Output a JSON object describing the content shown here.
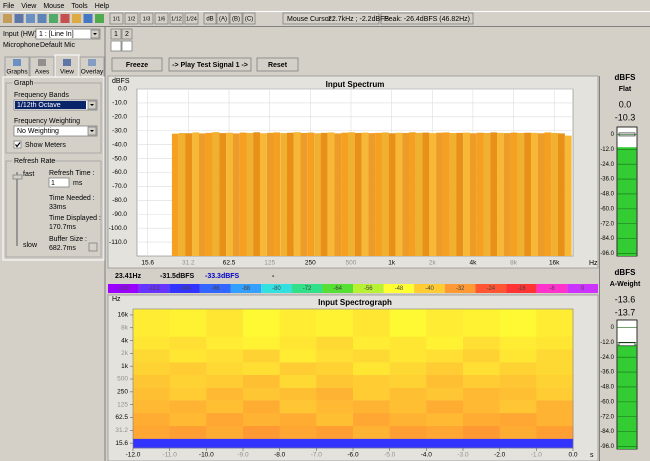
{
  "menu": [
    "File",
    "View",
    "Mouse",
    "Tools",
    "Help"
  ],
  "toolbar": {
    "bands": [
      "1/1",
      "1/2",
      "1/3",
      "1/6",
      "1/12",
      "1/24"
    ],
    "weightings": [
      "dB",
      "(A)",
      "(B)",
      "(C)"
    ],
    "cursor_label": "Mouse Cursor :",
    "cursor_value": "22.7kHz ; -2.2dBFS",
    "peak": "Peak: -26.4dBFS (46.82Hz)"
  },
  "input": {
    "label": "Input (HW)",
    "device": "1 : [Line In]",
    "source_label": "Microphone",
    "source": "Default Mic",
    "channels": [
      "1",
      "2"
    ]
  },
  "tabs": [
    "Graphs",
    "Axes",
    "View",
    "Overlay"
  ],
  "graph_group": {
    "title": "Graph",
    "bands_label": "Frequency Bands",
    "bands": "1/12th Octave",
    "weighting_label": "Frequency Weighting",
    "weighting": "No Weighting",
    "show_meters": "Show Meters"
  },
  "refresh_group": {
    "title": "Refresh Rate",
    "fast": "fast",
    "slow": "slow",
    "refresh_label": "Refresh Time :",
    "refresh_value": "1",
    "refresh_unit": "ms",
    "needed_label": "Time Needed :",
    "needed": "33ms",
    "displayed_label": "Time Displayed :",
    "displayed": "170.7ms",
    "buffer_label": "Buffer Size :",
    "buffer": "682.7ms"
  },
  "buttons": [
    "Freeze",
    "-> Play Test Signal 1 ->",
    "Reset"
  ],
  "readout": [
    "23.41Hz",
    "-31.5dBFS",
    "-33.3dBFS",
    "-"
  ],
  "chart_data": [
    {
      "type": "bar",
      "title": "Input Spectrum",
      "y_label": "dBFS",
      "x_label": "Hz",
      "x_scale": "log",
      "grid": true,
      "x": [
        25,
        28.1,
        31.5,
        35.4,
        39.7,
        44.5,
        50,
        56.1,
        63,
        70.7,
        79.4,
        89.1,
        100,
        112,
        126,
        141,
        159,
        178,
        200,
        224,
        252,
        283,
        317,
        356,
        400,
        449,
        504,
        566,
        635,
        713,
        800,
        898,
        1008,
        1131,
        1270,
        1425,
        1600,
        1796,
        2016,
        2263,
        2540,
        2851,
        3200,
        3592,
        4032,
        4525,
        5080,
        5702,
        6400,
        7184,
        8063,
        9051,
        10159,
        11404,
        12800,
        14368,
        16127,
        18102,
        20319
      ],
      "values": [
        -32.1,
        -31.6,
        -31.8,
        -31.2,
        -31.9,
        -31.5,
        -31.0,
        -31.7,
        -31.4,
        -31.9,
        -31.3,
        -31.6,
        -31.1,
        -31.8,
        -31.5,
        -31.2,
        -31.7,
        -31.4,
        -31.0,
        -31.6,
        -31.3,
        -31.8,
        -31.5,
        -31.2,
        -31.9,
        -31.4,
        -31.1,
        -31.6,
        -31.3,
        -31.7,
        -31.5,
        -31.2,
        -31.8,
        -31.4,
        -31.6,
        -31.1,
        -31.5,
        -31.3,
        -31.7,
        -31.4,
        -31.2,
        -31.6,
        -31.5,
        -31.3,
        -31.8,
        -31.4,
        -31.6,
        -31.2,
        -31.5,
        -31.7,
        -31.3,
        -31.6,
        -31.4,
        -31.5,
        -31.8,
        -31.2,
        -31.6,
        -31.9,
        -33.5
      ],
      "colors": [
        "#f5a020",
        "#f0b030",
        "#e89018",
        "#f7b838",
        "#ee9c28"
      ],
      "peak": {
        "color": "#000000",
        "values": [
          -30.4,
          -30.1,
          -30.3,
          -29.9,
          -30.2,
          -29.8,
          -30.0,
          -29.7,
          -29.9,
          -29.6,
          -29.8,
          -29.5,
          -29.7,
          -29.3,
          -29.6,
          -29.2,
          -29.0,
          -29.4,
          -28.6,
          -28.9,
          -27.9,
          -28.5,
          -29.1,
          -28.2,
          -28.8,
          -29.3,
          -28.7,
          -29.0,
          -28.4,
          -29.2,
          -28.9,
          -29.4,
          -29.1,
          -29.6,
          -29.3,
          -29.5,
          -29.2,
          -29.7,
          -29.4,
          -29.8,
          -29.5,
          -29.7,
          -29.4,
          -29.8,
          -29.6,
          -29.9,
          -29.5,
          -29.7,
          -29.8,
          -30.0,
          -29.7,
          -29.9,
          -30.1,
          -29.8,
          -30.0,
          -30.2,
          -30.1,
          -30.3,
          -32.0
        ]
      },
      "ylim": [
        -120,
        0
      ],
      "yticks": [
        {
          "value": 0,
          "label": "0.0"
        },
        {
          "value": -10,
          "label": "-10.0"
        },
        {
          "value": -20,
          "label": "-20.0"
        },
        {
          "value": -30,
          "label": "-30.0"
        },
        {
          "value": -40,
          "label": "-40.0"
        },
        {
          "value": -50,
          "label": "-50.0"
        },
        {
          "value": -60,
          "label": "-60.0"
        },
        {
          "value": -70,
          "label": "-70.0"
        },
        {
          "value": -80,
          "label": "-80.0"
        },
        {
          "value": -90,
          "label": "-90.0"
        },
        {
          "value": -100,
          "label": "-100.0"
        },
        {
          "value": -110,
          "label": "-110.0"
        }
      ],
      "xlim": [
        13,
        22050
      ],
      "xticks": [
        15.6,
        31.2,
        62.5,
        125,
        250,
        500,
        {
          "value": 1000,
          "label": "1k"
        },
        {
          "value": 2000,
          "label": "2k"
        },
        {
          "value": 4000,
          "label": "4k"
        },
        {
          "value": 8000,
          "label": "8k"
        },
        {
          "value": 16000,
          "label": "16k"
        }
      ]
    },
    {
      "type": "heatmap",
      "title": "Input Spectrograph",
      "y_label": "Hz",
      "x_label": "s",
      "y_scale": "log",
      "x_bins": [
        -12,
        -11,
        -10,
        -9,
        -8,
        -7,
        -6,
        -5,
        -4,
        -3,
        -2,
        -1,
        0
      ],
      "y_bins": [
        12,
        20,
        40,
        80,
        160,
        315,
        630,
        1250,
        2500,
        5000,
        22050
      ],
      "z": [
        [
          -104,
          -104,
          -104,
          -104,
          -104,
          -104,
          -104,
          -104,
          -104,
          -104,
          -104,
          -104
        ],
        [
          -34,
          -33,
          -35,
          -32,
          -34,
          -33,
          -36,
          -33,
          -34,
          -32,
          -35,
          -33
        ],
        [
          -35,
          -37,
          -34,
          -36,
          -35,
          -38,
          -34,
          -36,
          -37,
          -35,
          -34,
          -36
        ],
        [
          -37,
          -36,
          -38,
          -35,
          -39,
          -37,
          -36,
          -38,
          -35,
          -37,
          -39,
          -36
        ],
        [
          -38,
          -40,
          -37,
          -39,
          -38,
          -36,
          -40,
          -38,
          -39,
          -37,
          -38,
          -40
        ],
        [
          -39,
          -41,
          -40,
          -38,
          -42,
          -39,
          -40,
          -41,
          -38,
          -40,
          -39,
          -41
        ],
        [
          -41,
          -40,
          -42,
          -43,
          -40,
          -41,
          -44,
          -42,
          -40,
          -43,
          -41,
          -42
        ],
        [
          -42,
          -44,
          -43,
          -41,
          -45,
          -43,
          -42,
          -44,
          -43,
          -41,
          -44,
          -42
        ],
        [
          -44,
          -43,
          -45,
          -46,
          -44,
          -42,
          -45,
          -44,
          -46,
          -43,
          -45,
          -44
        ],
        [
          -45,
          -46,
          -44,
          -47,
          -45,
          -46,
          -44,
          -47,
          -45,
          -46,
          -47,
          -45
        ]
      ],
      "xlim": [
        -12,
        0
      ],
      "xticks": [
        {
          "value": -12,
          "label": "-12.0"
        },
        {
          "value": -11,
          "label": "-11.0"
        },
        {
          "value": -10,
          "label": "-10.0"
        },
        {
          "value": -9,
          "label": "-9.0"
        },
        {
          "value": -8,
          "label": "-8.0"
        },
        {
          "value": -7,
          "label": "-7.0"
        },
        {
          "value": -6,
          "label": "-6.0"
        },
        {
          "value": -5,
          "label": "-5.0"
        },
        {
          "value": -4,
          "label": "-4.0"
        },
        {
          "value": -3,
          "label": "-3.0"
        },
        {
          "value": -2,
          "label": "-2.0"
        },
        {
          "value": -1,
          "label": "-1.0"
        },
        {
          "value": 0,
          "label": "0.0"
        }
      ],
      "ylim": [
        12,
        22050
      ],
      "yticks": [
        15.6,
        31.2,
        62.5,
        125,
        250,
        500,
        {
          "value": 1000,
          "label": "1k"
        },
        {
          "value": 2000,
          "label": "2k"
        },
        {
          "value": 4000,
          "label": "4k"
        },
        {
          "value": 8000,
          "label": "8k"
        },
        {
          "value": 16000,
          "label": "16k"
        }
      ]
    }
  ],
  "colorbar": {
    "ticks": [
      -120,
      -112,
      -104,
      -96,
      -88,
      -80,
      -72,
      -64,
      -56,
      -48,
      -40,
      -32,
      -24,
      -16,
      -8,
      0
    ],
    "colors": [
      "#9900ff",
      "#6633ff",
      "#3333ff",
      "#3366ff",
      "#33a0ff",
      "#33e0e0",
      "#33e08a",
      "#55e033",
      "#b8f033",
      "#ffff33",
      "#ffcc33",
      "#ff9933",
      "#ff5533",
      "#ff3333",
      "#ff33cc",
      "#cc33ff"
    ]
  },
  "meters": [
    {
      "unit": "dBFS",
      "weighting": "Flat",
      "peak": {
        "value": 0,
        "label": "0.0"
      },
      "level": -10.3,
      "color": "#33cc33",
      "ylim": [
        -98,
        6
      ],
      "ticks": [
        0,
        {
          "value": -12,
          "label": "-12.0"
        },
        {
          "value": -24,
          "label": "-24.0"
        },
        {
          "value": -36,
          "label": "-36.0"
        },
        {
          "value": -48,
          "label": "-48.0"
        },
        {
          "value": -60,
          "label": "-60.0"
        },
        {
          "value": -72,
          "label": "-72.0"
        },
        {
          "value": -84,
          "label": "-84.0"
        },
        {
          "value": -96,
          "label": "-96.0"
        }
      ]
    },
    {
      "unit": "dBFS",
      "weighting": "A-Weight",
      "peak": -13.6,
      "level": -13.7,
      "color": "#33cc33",
      "ylim": [
        -98,
        6
      ],
      "ticks": [
        0,
        {
          "value": -12,
          "label": "-12.0"
        },
        {
          "value": -24,
          "label": "-24.0"
        },
        {
          "value": -36,
          "label": "-36.0"
        },
        {
          "value": -48,
          "label": "-48.0"
        },
        {
          "value": -60,
          "label": "-60.0"
        },
        {
          "value": -72,
          "label": "-72.0"
        },
        {
          "value": -84,
          "label": "-84.0"
        },
        {
          "value": -96,
          "label": "-96.0"
        }
      ]
    }
  ]
}
